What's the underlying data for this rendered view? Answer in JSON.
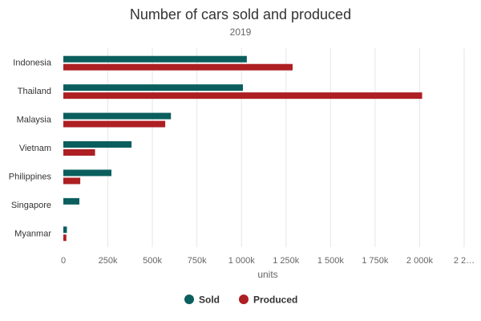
{
  "chart_data": {
    "type": "bar",
    "orientation": "horizontal",
    "title": "Number of cars sold and produced",
    "subtitle": "2019",
    "xlabel": "units",
    "ylabel": "",
    "xlim": [
      0,
      2250000
    ],
    "x_ticks": [
      0,
      250000,
      500000,
      750000,
      1000000,
      1250000,
      1500000,
      1750000,
      2000000,
      2250000
    ],
    "x_tick_labels": [
      "0",
      "250k",
      "500k",
      "750k",
      "1 000k",
      "1 250k",
      "1 500k",
      "1 750k",
      "2 000k",
      "2 2…"
    ],
    "grid": true,
    "legend": "bottom-center",
    "categories": [
      "Indonesia",
      "Thailand",
      "Malaysia",
      "Vietnam",
      "Philippines",
      "Singapore",
      "Myanmar"
    ],
    "series": [
      {
        "name": "Sold",
        "color": "#0b5e5e",
        "values": [
          1030000,
          1008000,
          604000,
          383000,
          270000,
          90000,
          20000
        ]
      },
      {
        "name": "Produced",
        "color": "#ad1f22",
        "values": [
          1287000,
          2014000,
          572000,
          178000,
          95000,
          0,
          17000
        ]
      }
    ]
  }
}
